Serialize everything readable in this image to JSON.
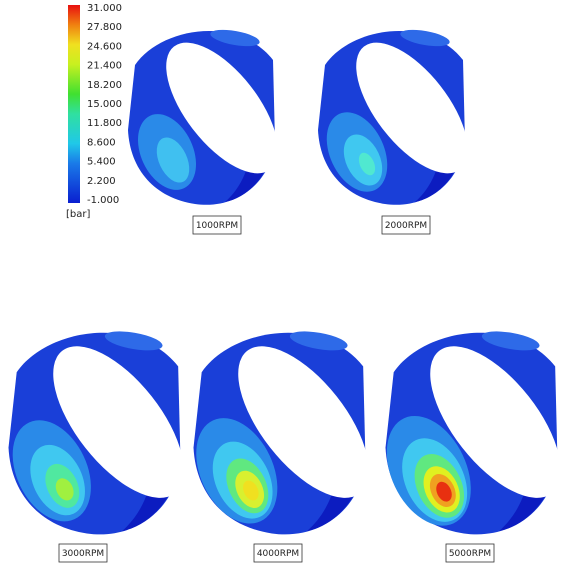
{
  "legend": {
    "labels": [
      "31.000",
      "27.800",
      "24.600",
      "21.400",
      "18.200",
      "15.000",
      "11.800",
      "8.600",
      "5.400",
      "2.200",
      "-1.000"
    ],
    "unit": "[bar]"
  },
  "panels": [
    {
      "label": "1000RPM"
    },
    {
      "label": "2000RPM"
    },
    {
      "label": "3000RPM"
    },
    {
      "label": "4000RPM"
    },
    {
      "label": "5000RPM"
    }
  ]
}
